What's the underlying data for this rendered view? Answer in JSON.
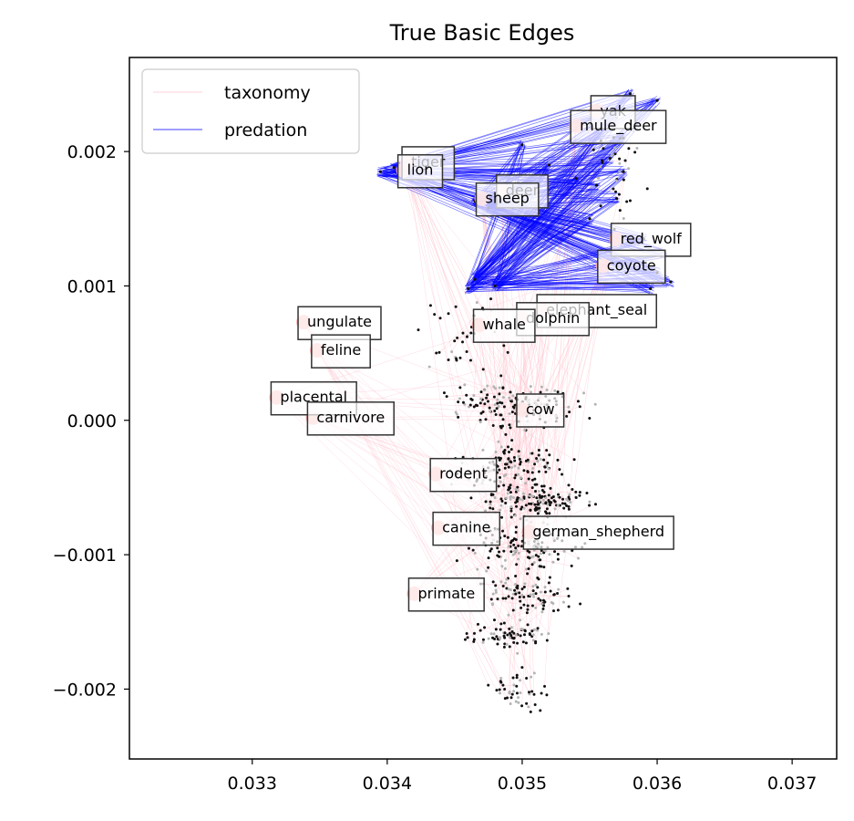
{
  "chart_data": {
    "type": "scatter",
    "title": "True Basic Edges",
    "xlabel": "",
    "ylabel": "",
    "xlim": [
      0.03209,
      0.03733
    ],
    "ylim": [
      -0.00252,
      0.0027
    ],
    "x_ticks": [
      0.033,
      0.034,
      0.035,
      0.036,
      0.037
    ],
    "x_tick_labels": [
      "0.033",
      "0.034",
      "0.035",
      "0.036",
      "0.037"
    ],
    "y_ticks": [
      0.002,
      0.001,
      0.0,
      -0.001,
      -0.002
    ],
    "y_tick_labels": [
      "0.002",
      "0.001",
      "0.000",
      "−0.001",
      "−0.002"
    ],
    "grid": false,
    "legend": {
      "placement": "top-left",
      "entries": [
        {
          "name": "taxonomy",
          "color": "#ffc0cb"
        },
        {
          "name": "predation",
          "color": "#0000ff"
        }
      ]
    },
    "labeled_nodes": [
      {
        "label": "yak",
        "x": 0.03555,
        "y": 0.0023
      },
      {
        "label": "mule_deer",
        "x": 0.0354,
        "y": 0.00219
      },
      {
        "label": "tiger",
        "x": 0.03415,
        "y": 0.00192
      },
      {
        "label": "lion",
        "x": 0.03412,
        "y": 0.00186
      },
      {
        "label": "deer",
        "x": 0.03485,
        "y": 0.00171
      },
      {
        "label": "sheep",
        "x": 0.0347,
        "y": 0.00165
      },
      {
        "label": "red_wolf",
        "x": 0.0357,
        "y": 0.00135
      },
      {
        "label": "coyote",
        "x": 0.0356,
        "y": 0.00115
      },
      {
        "label": "elephant_seal",
        "x": 0.03515,
        "y": 0.00082
      },
      {
        "label": "dolphin",
        "x": 0.035,
        "y": 0.00076
      },
      {
        "label": "whale",
        "x": 0.03468,
        "y": 0.00071
      },
      {
        "label": "ungulate",
        "x": 0.03338,
        "y": 0.00073
      },
      {
        "label": "feline",
        "x": 0.03348,
        "y": 0.00052
      },
      {
        "label": "placental",
        "x": 0.03318,
        "y": 0.00017
      },
      {
        "label": "carnivore",
        "x": 0.03345,
        "y": 2e-05
      },
      {
        "label": "cow",
        "x": 0.035,
        "y": 8e-05
      },
      {
        "label": "rodent",
        "x": 0.03436,
        "y": -0.0004
      },
      {
        "label": "canine",
        "x": 0.03438,
        "y": -0.0008
      },
      {
        "label": "german_shepherd",
        "x": 0.03505,
        "y": -0.00083
      },
      {
        "label": "primate",
        "x": 0.0342,
        "y": -0.00129
      }
    ],
    "predation_targets": [
      {
        "x": 0.0358,
        "y": 0.00243
      },
      {
        "x": 0.036,
        "y": 0.00238
      },
      {
        "x": 0.0357,
        "y": 0.00225
      },
      {
        "x": 0.03575,
        "y": 0.0021
      },
      {
        "x": 0.03565,
        "y": 0.00195
      },
      {
        "x": 0.03575,
        "y": 0.00185
      },
      {
        "x": 0.03555,
        "y": 0.00175
      },
      {
        "x": 0.0357,
        "y": 0.00165
      },
      {
        "x": 0.0355,
        "y": 0.0015
      },
      {
        "x": 0.0359,
        "y": 0.00135
      },
      {
        "x": 0.03605,
        "y": 0.00125
      },
      {
        "x": 0.036,
        "y": 0.0011
      },
      {
        "x": 0.0361,
        "y": 0.00103
      },
      {
        "x": 0.03595,
        "y": 0.00098
      },
      {
        "x": 0.035,
        "y": 0.00205
      },
      {
        "x": 0.0352,
        "y": 0.0019
      },
      {
        "x": 0.0354,
        "y": 0.0018
      }
    ],
    "predation_sources": [
      {
        "x": 0.03395,
        "y": 0.00185
      },
      {
        "x": 0.03405,
        "y": 0.00188
      },
      {
        "x": 0.03465,
        "y": 0.00163
      },
      {
        "x": 0.03475,
        "y": 0.00158
      },
      {
        "x": 0.03465,
        "y": 0.00105
      },
      {
        "x": 0.0348,
        "y": 0.001
      },
      {
        "x": 0.0346,
        "y": 0.00098
      }
    ],
    "colors": {
      "taxonomy": "#ffc0cb",
      "predation": "#0000ff",
      "labeled_node": "#ffb0b0",
      "node_dark": "#111111",
      "node_gray": "#b4b4b4"
    }
  }
}
